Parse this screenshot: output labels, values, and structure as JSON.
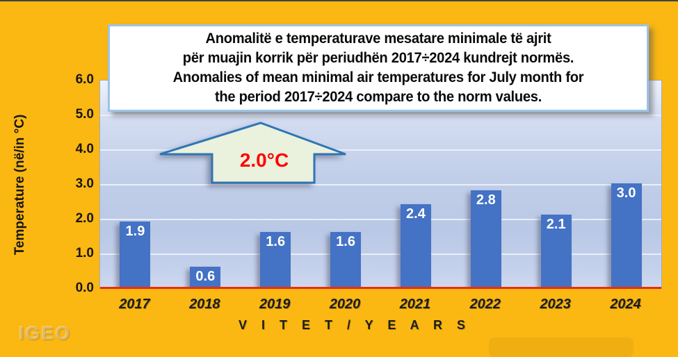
{
  "title_box": {
    "lines": [
      "Anomalitë e temperaturave mesatare minimale të ajrit",
      "për muajin korrik për periudhën 2017÷2024 kundrejt normës.",
      "Anomalies of mean minimal air temperatures for July month for",
      "the period 2017÷2024  compare to the norm values."
    ]
  },
  "chart_data": {
    "type": "bar",
    "categories": [
      "2017",
      "2018",
      "2019",
      "2020",
      "2021",
      "2022",
      "2023",
      "2024"
    ],
    "values": [
      1.9,
      0.6,
      1.6,
      1.6,
      2.4,
      2.8,
      2.1,
      3.0
    ],
    "value_labels": [
      "1.9",
      "0.6",
      "1.6",
      "1.6",
      "2.4",
      "2.8",
      "2.1",
      "3.0"
    ],
    "title": "Anomalies of mean minimal air temperatures for July month for the period 2017÷2024 compare to the norm values",
    "xlabel": "V I T E T   /   Y E A R S",
    "ylabel": "Temperature (në/in °C)",
    "ylim": [
      0,
      6
    ],
    "ytick_step": 1,
    "ytick_format": "one_decimal",
    "grid": true,
    "legend": false,
    "bar_color": "#4472C4",
    "baseline_color": "#EA2E0C",
    "plot_background": "light-blue-gradient",
    "page_background": "#FBB712"
  },
  "annotation_arrow": {
    "label": "2.0°C",
    "shape": "block-arrow-up",
    "fill": "#EAF1DC",
    "border": "#2E75B6",
    "text_color": "#FF0000"
  },
  "watermark": {
    "text": "IGEO"
  }
}
